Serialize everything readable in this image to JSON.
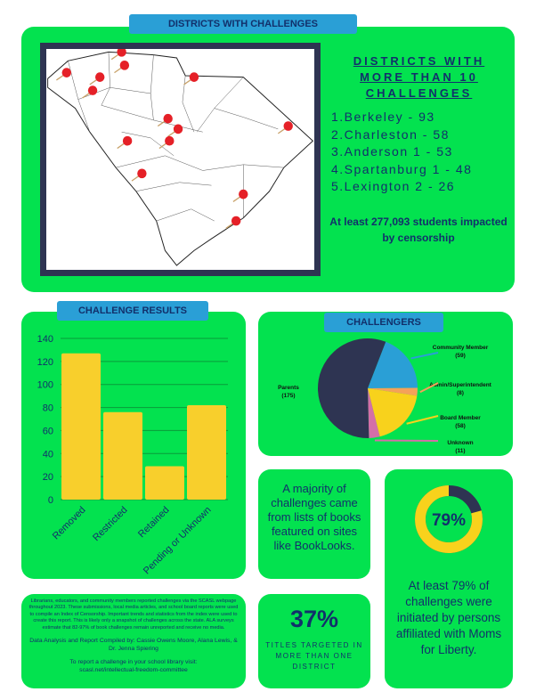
{
  "colors": {
    "background_card": "#03e24f",
    "banner": "#2a9fd6",
    "text": "#12306b",
    "bar": "#f8cf2c",
    "navy": "#2e3452"
  },
  "top": {
    "banner": "DISTRICTS WITH CHALLENGES",
    "heading": "DISTRICTS WITH MORE THAN 10 CHALLENGES",
    "districts": [
      "1.Berkeley - 93",
      "2.Charleston - 58",
      "3.Anderson 1 - 53",
      "4.Spartanburg 1 - 48",
      "5.Lexington 2 - 26"
    ],
    "impact": "At least 277,093 students impacted by censorship"
  },
  "chart_data": [
    {
      "type": "bar",
      "title": "CHALLENGE RESULTS",
      "categories": [
        "Removed",
        "Restricted",
        "Retained",
        "Pending or Unknown"
      ],
      "values": [
        127,
        76,
        29,
        82
      ],
      "ylim": [
        0,
        140
      ],
      "yticks": [
        0,
        20,
        40,
        60,
        80,
        100,
        120,
        140
      ],
      "grid": true,
      "color": "#f8cf2c"
    },
    {
      "type": "pie",
      "title": "CHALLENGERS",
      "slices": [
        {
          "label": "Community Member",
          "value": 59,
          "display": "(59)",
          "color": "#2a9fd6"
        },
        {
          "label": "Admin/Superintendent",
          "value": 8,
          "display": "(8)",
          "color": "#f4a259"
        },
        {
          "label": "Board Member",
          "value": 58,
          "display": "(58)",
          "color": "#f8d21c"
        },
        {
          "label": "Unknown",
          "value": 11,
          "display": "(11)",
          "color": "#d46fa8"
        },
        {
          "label": "Parents",
          "value": 175,
          "display": "(175)",
          "color": "#2e3452"
        }
      ]
    },
    {
      "type": "donut",
      "value": 79,
      "label": "79%",
      "colors": [
        "#f8d21c",
        "#2e3452"
      ]
    }
  ],
  "booklooks": "A majority of challenges came from lists of books featured on sites like BookLooks.",
  "moms": "At least 79% of challenges were initiated by persons affiliated with Moms for Liberty.",
  "titles": {
    "value": "37%",
    "caption": "TITLES TARGETED IN MORE THAN ONE DISTRICT"
  },
  "footer": {
    "p1": "Librarians, educators, and community members reported challenges via the SCASL webpage throughout 2023. These submissions, local media articles, and school board reports were used to compile an Index of Censorship. Important trends and statistics from the index were used to create this report. This is likely only a snapshot of challenges across the state. ALA surveys estimate that 82-97% of book challenges remain unreported and receive no media.",
    "p2": "Data Analysis and Report Compiled by: Cassie Owens Moore, Alana Lewis, & Dr. Jenna Spiering",
    "p3": "To report a challenge in your school library visit:",
    "link": "scasl.net/intellectual-freedom-committee"
  }
}
